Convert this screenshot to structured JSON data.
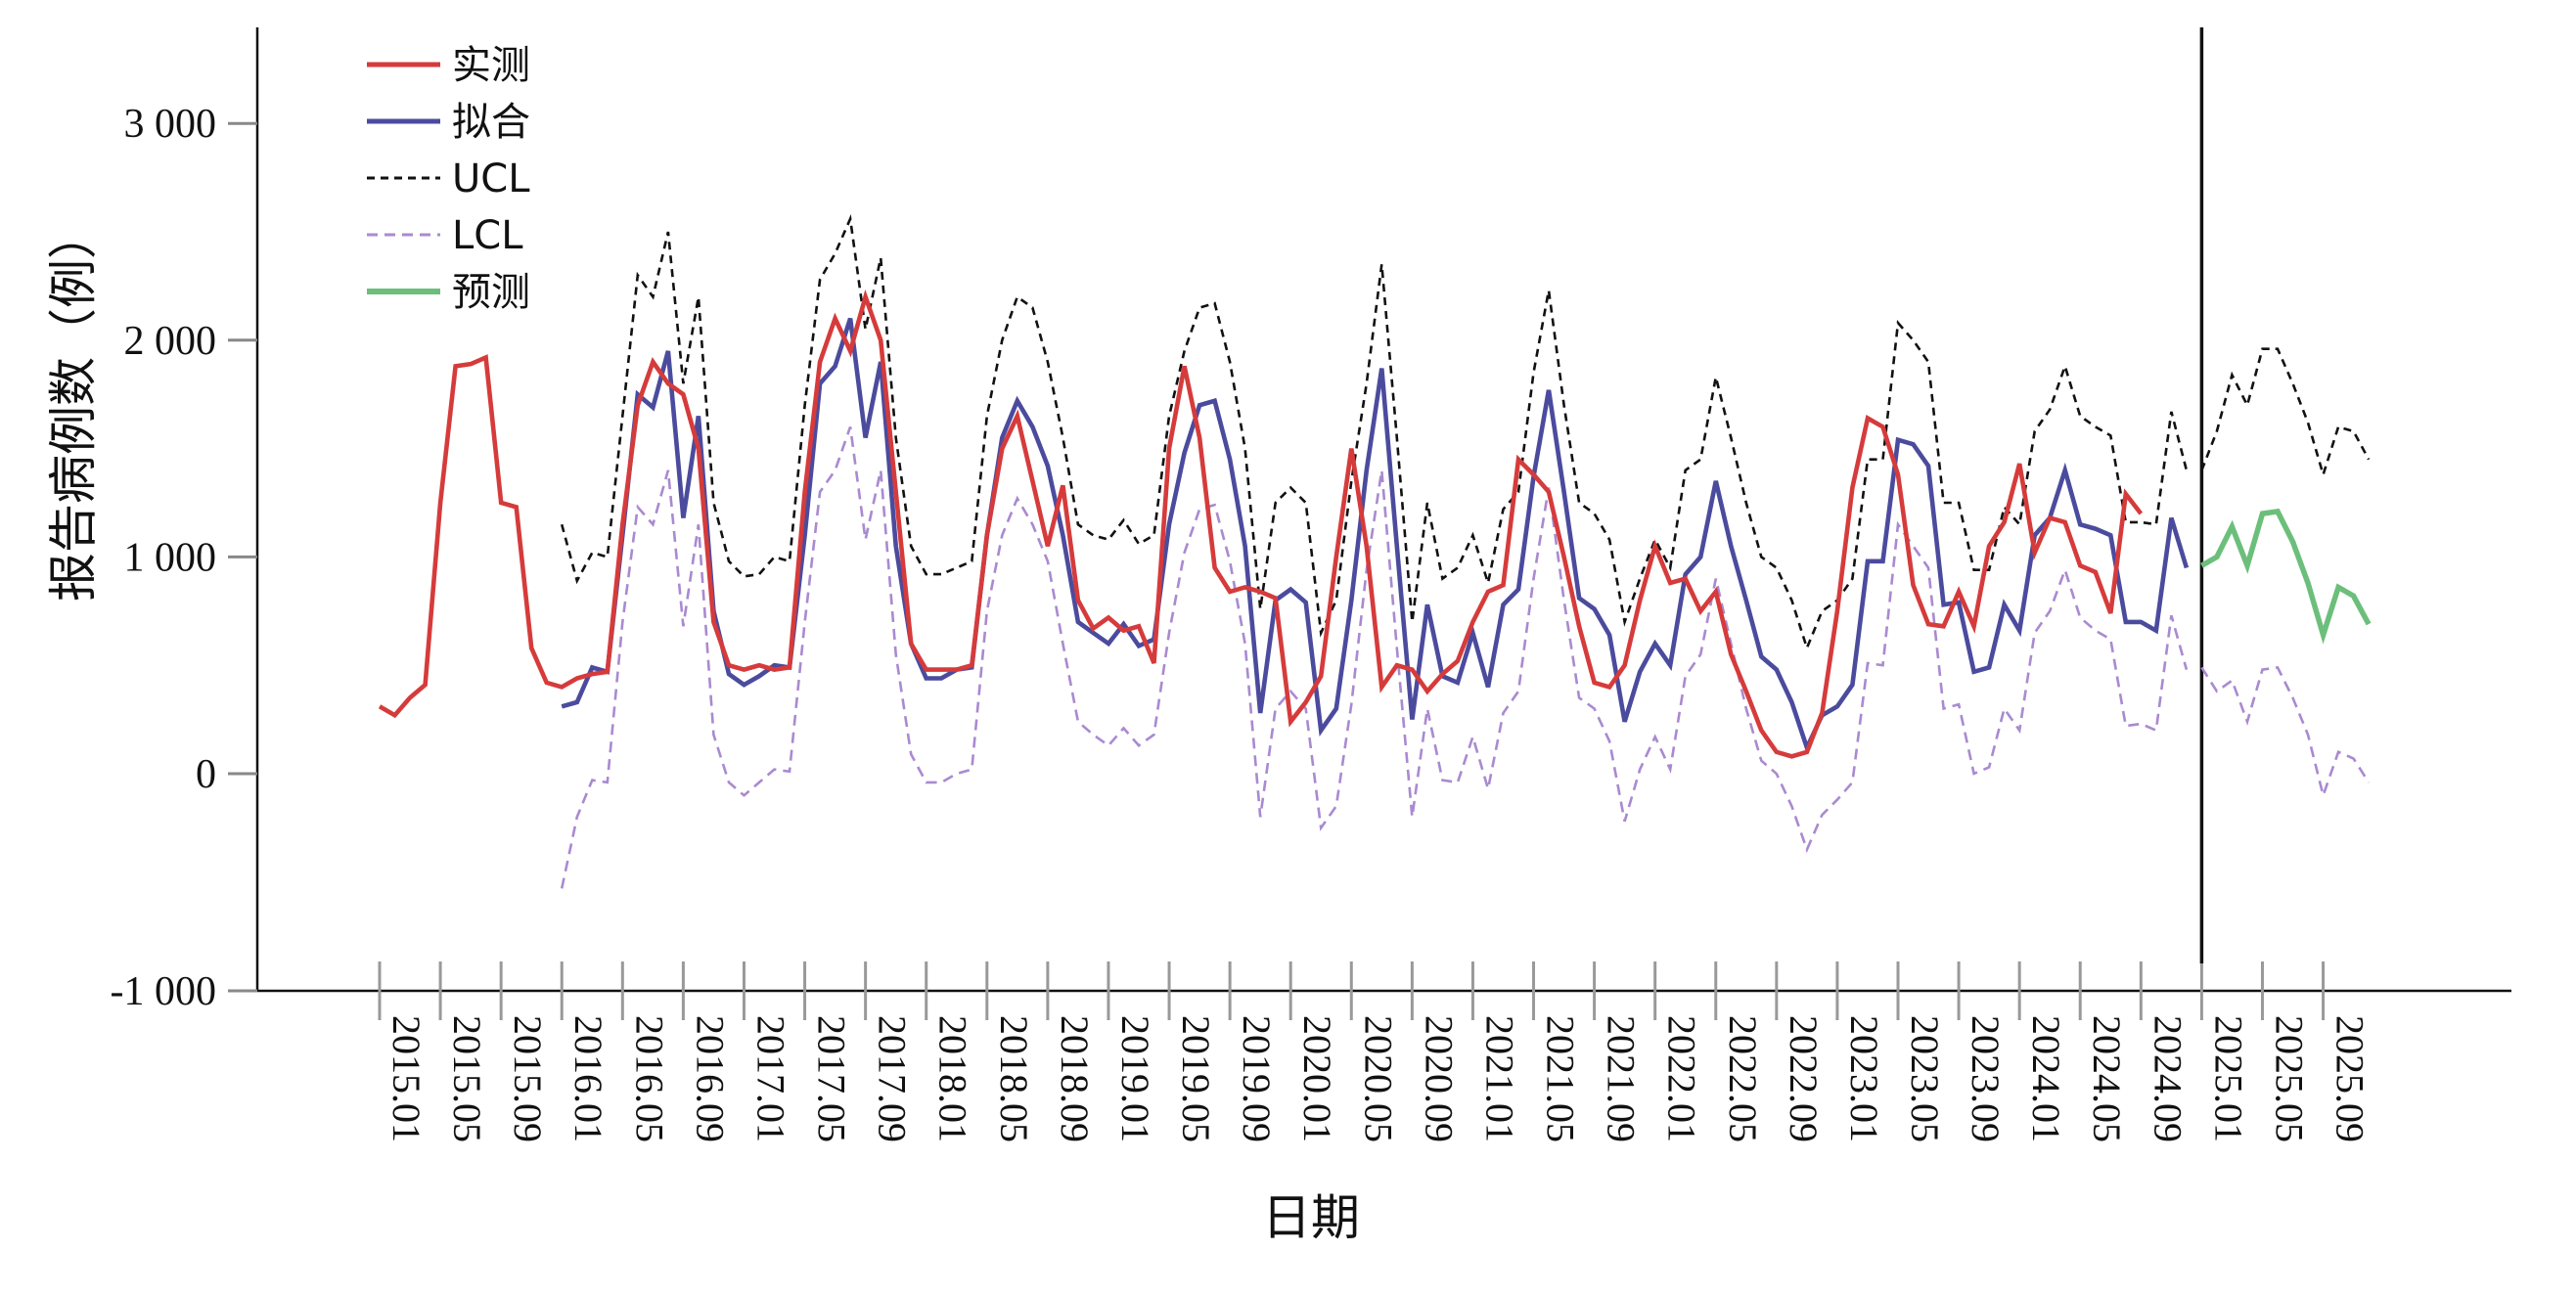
{
  "chart_data": {
    "type": "line",
    "ylabel": "报告病例数（例）",
    "xlabel": "日期",
    "ylim": [
      -1000,
      3450
    ],
    "y_ticks": [
      -1000,
      0,
      1000,
      2000,
      3000
    ],
    "y_tick_labels": [
      "-1 000",
      "0",
      "1 000",
      "2 000",
      "3 000"
    ],
    "x_tick_labels": [
      "2015.01",
      "2015.05",
      "2015.09",
      "2016.01",
      "2016.05",
      "2016.09",
      "2017.01",
      "2017.05",
      "2017.09",
      "2018.01",
      "2018.05",
      "2018.09",
      "2019.01",
      "2019.05",
      "2019.09",
      "2020.01",
      "2020.05",
      "2020.09",
      "2021.01",
      "2021.05",
      "2021.09",
      "2022.01",
      "2022.05",
      "2022.09",
      "2023.01",
      "2023.05",
      "2023.09",
      "2024.01",
      "2024.05",
      "2024.09",
      "2025.01",
      "2025.05",
      "2025.09"
    ],
    "forecast_start_label": "2025.01",
    "legend": [
      "实测",
      "拟合",
      "UCL",
      "LCL",
      "预测"
    ],
    "series": [
      {
        "name": "实测",
        "color": "#d63b3b",
        "style": "solid",
        "start": "2015.01",
        "values": [
          310,
          270,
          350,
          410,
          1250,
          1880,
          1890,
          1920,
          1250,
          1230,
          580,
          420,
          400,
          440,
          460,
          470,
          1150,
          1700,
          1900,
          1800,
          1750,
          1500,
          700,
          500,
          480,
          500,
          480,
          490,
          1300,
          1900,
          2100,
          1950,
          2200,
          2000,
          1300,
          600,
          480,
          480,
          480,
          500,
          1100,
          1500,
          1650,
          1350,
          1050,
          1330,
          800,
          670,
          720,
          660,
          680,
          510,
          1500,
          1880,
          1550,
          950,
          840,
          860,
          840,
          810,
          240,
          330,
          450,
          1000,
          1500,
          1050,
          400,
          500,
          480,
          380,
          460,
          520,
          700,
          840,
          870,
          1450,
          1380,
          1300,
          1000,
          680,
          420,
          400,
          500,
          800,
          1050,
          880,
          900,
          750,
          840,
          550,
          380,
          200,
          100,
          80,
          100,
          280,
          750,
          1320,
          1640,
          1600,
          1380,
          870,
          690,
          680,
          840,
          680,
          1050,
          1160,
          1430,
          1020,
          1180,
          1160,
          960,
          930,
          740,
          1290,
          1200
        ]
      },
      {
        "name": "拟合",
        "color": "#4b4b9e",
        "style": "solid",
        "start": "2016.01",
        "values": [
          310,
          330,
          490,
          470,
          1100,
          1750,
          1690,
          1950,
          1180,
          1650,
          750,
          460,
          410,
          450,
          500,
          490,
          1100,
          1800,
          1880,
          2100,
          1550,
          1900,
          1050,
          600,
          440,
          440,
          480,
          490,
          1100,
          1550,
          1720,
          1600,
          1420,
          1100,
          700,
          650,
          600,
          690,
          590,
          620,
          1150,
          1480,
          1700,
          1720,
          1450,
          1050,
          280,
          800,
          850,
          790,
          200,
          300,
          800,
          1400,
          1870,
          1050,
          250,
          780,
          450,
          420,
          650,
          400,
          780,
          850,
          1370,
          1770,
          1300,
          810,
          760,
          640,
          240,
          470,
          600,
          500,
          920,
          1000,
          1350,
          1050,
          800,
          540,
          480,
          330,
          120,
          270,
          310,
          410,
          980,
          980,
          1540,
          1520,
          1420,
          780,
          790,
          470,
          490,
          780,
          660,
          1100,
          1180,
          1400,
          1150,
          1130,
          1100,
          700,
          700,
          660,
          1180,
          950
        ]
      },
      {
        "name": "UCL",
        "color": "#111111",
        "style": "dashed",
        "start": "2016.01",
        "values": [
          1150,
          890,
          1020,
          1000,
          1650,
          2300,
          2200,
          2500,
          1800,
          2200,
          1250,
          980,
          910,
          920,
          1000,
          980,
          1700,
          2280,
          2400,
          2560,
          2050,
          2380,
          1550,
          1050,
          920,
          920,
          950,
          980,
          1650,
          2000,
          2200,
          2150,
          1900,
          1550,
          1150,
          1100,
          1080,
          1170,
          1060,
          1100,
          1650,
          1950,
          2150,
          2170,
          1900,
          1500,
          760,
          1250,
          1320,
          1250,
          650,
          800,
          1350,
          1800,
          2350,
          1550,
          700,
          1250,
          900,
          950,
          1100,
          880,
          1220,
          1300,
          1850,
          2230,
          1700,
          1250,
          1200,
          1080,
          700,
          900,
          1080,
          950,
          1400,
          1450,
          1830,
          1550,
          1250,
          1000,
          950,
          800,
          580,
          750,
          800,
          900,
          1450,
          1450,
          2080,
          2000,
          1900,
          1250,
          1250,
          940,
          940,
          1230,
          1150,
          1580,
          1680,
          1880,
          1650,
          1600,
          1560,
          1160,
          1160,
          1150,
          1670,
          1400
        ]
      },
      {
        "name": "LCL",
        "color": "#a98ad0",
        "style": "dashed",
        "start": "2016.01",
        "values": [
          -530,
          -200,
          -30,
          -40,
          700,
          1230,
          1150,
          1400,
          680,
          1150,
          180,
          -40,
          -100,
          -40,
          20,
          10,
          700,
          1300,
          1400,
          1600,
          1080,
          1400,
          550,
          90,
          -40,
          -40,
          0,
          20,
          750,
          1100,
          1270,
          1150,
          980,
          600,
          240,
          180,
          130,
          210,
          130,
          180,
          650,
          1020,
          1220,
          1240,
          980,
          600,
          -200,
          300,
          380,
          300,
          -250,
          -150,
          320,
          940,
          1400,
          580,
          -200,
          300,
          -30,
          -40,
          170,
          -70,
          280,
          380,
          900,
          1320,
          800,
          350,
          300,
          150,
          -220,
          20,
          170,
          20,
          450,
          550,
          900,
          600,
          300,
          60,
          0,
          -150,
          -350,
          -190,
          -120,
          -40,
          510,
          500,
          1150,
          1050,
          950,
          300,
          320,
          0,
          30,
          300,
          200,
          650,
          750,
          940,
          720,
          660,
          620,
          220,
          230,
          200,
          730,
          480
        ]
      },
      {
        "name": "预测",
        "color": "#6cbf7b",
        "style": "solid",
        "start": "2025.01",
        "values": [
          960,
          1000,
          1140,
          960,
          1200,
          1210,
          1070,
          880,
          640,
          860,
          820,
          690
        ]
      },
      {
        "name": "UCL",
        "color": "#111111",
        "style": "dashed",
        "start": "2025.01",
        "values": [
          1400,
          1580,
          1840,
          1700,
          1960,
          1960,
          1800,
          1620,
          1380,
          1600,
          1580,
          1450
        ]
      },
      {
        "name": "LCL",
        "color": "#a98ad0",
        "style": "dashed",
        "start": "2025.01",
        "values": [
          490,
          380,
          430,
          240,
          480,
          490,
          350,
          180,
          -100,
          100,
          70,
          -40
        ]
      }
    ]
  }
}
